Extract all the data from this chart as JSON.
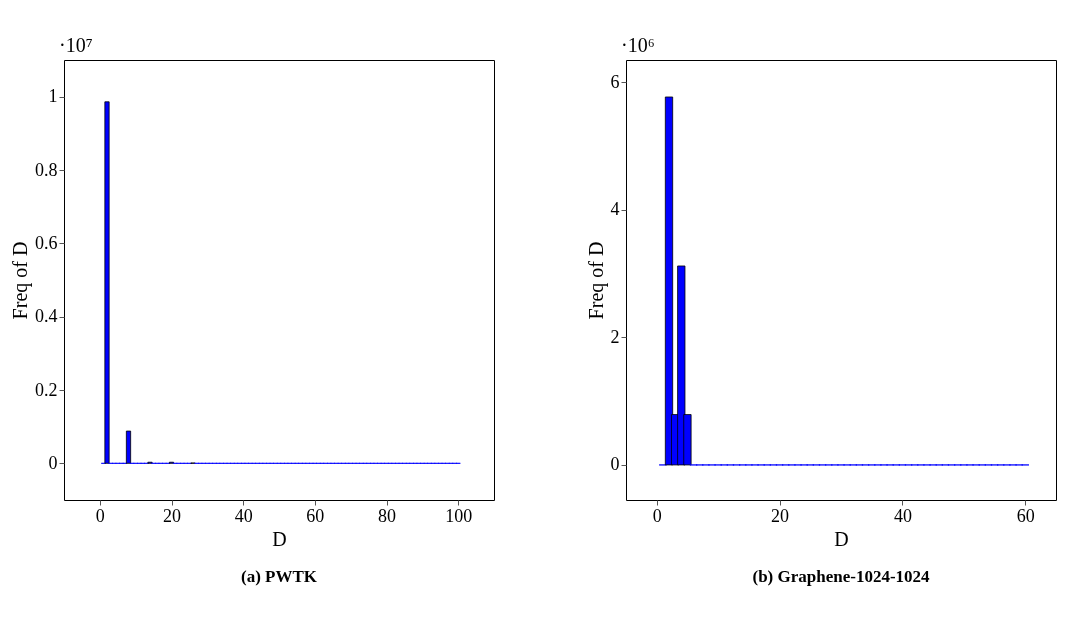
{
  "chart_data": [
    {
      "type": "bar",
      "title": "(a) PWTK",
      "xlabel": "D",
      "ylabel": "Freq of D",
      "annotations": [
        "·10⁷"
      ],
      "x": [
        1,
        2,
        3,
        4,
        5,
        6,
        7,
        8,
        9,
        10,
        11,
        12,
        13,
        14,
        15,
        16,
        17,
        18,
        19,
        20,
        21,
        22,
        23,
        24,
        25,
        26,
        27,
        28,
        29,
        30,
        31,
        32,
        33,
        34,
        35,
        36,
        37,
        38,
        39,
        40,
        41,
        42,
        43,
        44,
        45,
        46,
        47,
        48,
        49,
        50,
        51,
        52,
        53,
        54,
        55,
        56,
        57,
        58,
        59,
        60,
        61,
        62,
        63,
        64,
        65,
        66,
        67,
        68,
        69,
        70,
        71,
        72,
        73,
        74,
        75,
        76,
        77,
        78,
        79,
        80,
        81,
        82,
        83,
        84,
        85,
        86,
        87,
        88,
        89,
        90,
        91,
        92,
        93,
        94,
        95,
        96,
        97,
        98,
        99,
        100
      ],
      "values": [
        0,
        0.986,
        0,
        0,
        0,
        0,
        0,
        0.088,
        0,
        0,
        0,
        0,
        0,
        0.003,
        0,
        0,
        0,
        0,
        0,
        0.003,
        0,
        0,
        0,
        0,
        0,
        0.001,
        0,
        0,
        0,
        0,
        0,
        0,
        0,
        0,
        0,
        0,
        0,
        0,
        0,
        0,
        0,
        0,
        0,
        0,
        0,
        0,
        0,
        0,
        0,
        0,
        0,
        0,
        0,
        0,
        0,
        0,
        0,
        0,
        0,
        0,
        0,
        0,
        0,
        0,
        0,
        0,
        0,
        0,
        0,
        0,
        0,
        0,
        0,
        0,
        0,
        0,
        0,
        0,
        0,
        0,
        0,
        0,
        0,
        0,
        0,
        0,
        0,
        0,
        0,
        0,
        0,
        0,
        0,
        0,
        0,
        0,
        0,
        0,
        0,
        0
      ],
      "color": "#0000ff",
      "xlim": [
        -10,
        110
      ],
      "xticks": [
        0,
        20,
        40,
        60,
        80,
        100
      ],
      "ylim": [
        -0.1,
        1.1
      ],
      "yticks": [
        0,
        0.2,
        0.4,
        0.6,
        0.8,
        1
      ],
      "grid": false,
      "legend": false
    },
    {
      "type": "bar",
      "title": "(b) Graphene-1024-1024",
      "xlabel": "D",
      "ylabel": "Freq of D",
      "annotations": [
        "·10⁶"
      ],
      "x": [
        1,
        2,
        3,
        4,
        5,
        6,
        7,
        8,
        9,
        10,
        11,
        12,
        13,
        14,
        15,
        16,
        17,
        18,
        19,
        20,
        21,
        22,
        23,
        24,
        25,
        26,
        27,
        28,
        29,
        30,
        31,
        32,
        33,
        34,
        35,
        36,
        37,
        38,
        39,
        40,
        41,
        42,
        43,
        44,
        45,
        46,
        47,
        48,
        49,
        50,
        51,
        52,
        53,
        54,
        55,
        56,
        57,
        58,
        59,
        60
      ],
      "values": [
        0,
        5.77,
        0.79,
        3.12,
        0.79,
        0,
        0,
        0,
        0,
        0,
        0,
        0,
        0,
        0,
        0,
        0,
        0,
        0,
        0,
        0,
        0,
        0,
        0,
        0,
        0,
        0,
        0,
        0,
        0,
        0,
        0,
        0,
        0,
        0,
        0,
        0,
        0,
        0,
        0,
        0,
        0,
        0,
        0,
        0,
        0,
        0,
        0,
        0,
        0,
        0,
        0,
        0,
        0,
        0,
        0,
        0,
        0,
        0,
        0,
        0
      ],
      "color": "#0000ff",
      "xlim": [
        -5,
        65
      ],
      "xticks": [
        0,
        20,
        40,
        60
      ],
      "ylim": [
        -0.55,
        6.35
      ],
      "yticks": [
        0,
        2,
        4,
        6
      ],
      "grid": false,
      "legend": false
    }
  ]
}
